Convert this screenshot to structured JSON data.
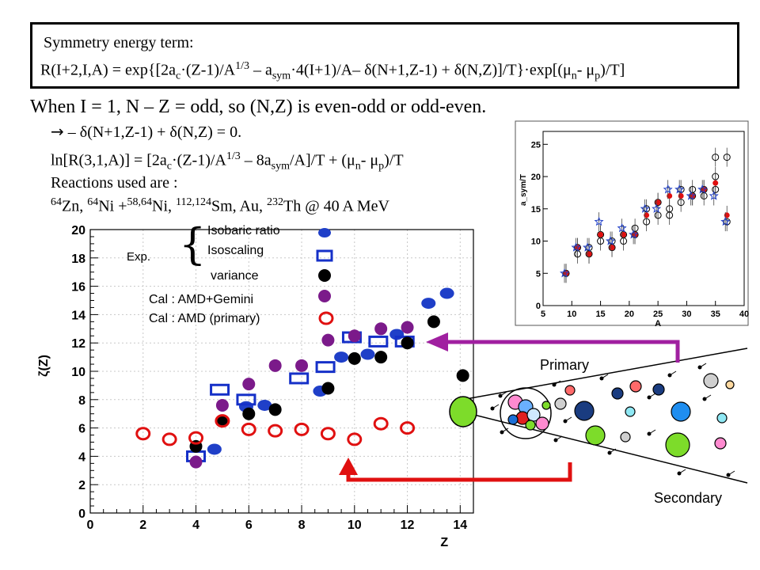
{
  "box": {
    "line1": "Symmetry energy term:",
    "line2_html": "R(I+2,I,A) = exp{[2a<sub>c</sub>·(Z-1)/A<sup>1/3</sup> – a<sub>sym</sub>·4(I+1)/A– δ(N+1,Z-1) + δ(N,Z)]/T}·exp[(μ<sub>n</sub>- μ<sub>p</sub>)/T]"
  },
  "text": {
    "when": "When I = 1, N – Z = odd, so (N,Z) is even-odd or odd-even.",
    "arrow_line": " – δ(N+1,Z-1) + δ(N,Z) = 0.",
    "ln_html": "ln[R(3,1,A)] = [2a<sub>c</sub>·(Z-1)/A<sup>1/3</sup> – 8a<sub>sym</sub>/A]/T + (μ<sub>n</sub>- μ<sub>p</sub>)/T",
    "reactions_title": "Reactions used are :",
    "reactions_html": "<sup>64</sup>Zn, <sup>64</sup>Ni +<sup>58,64</sup>Ni, <sup>112,124</sup>Sm, Au, <sup>232</sup>Th @ 40 A MeV"
  },
  "legend": {
    "exp": "Exp.",
    "isobaric": "Isobaric ratio",
    "isoscaling": "Isoscaling",
    "variance": "variance",
    "cal_amd_gemini": "Cal : AMD+Gemini",
    "cal_amd_primary": "Cal : AMD (primary)"
  },
  "labels": {
    "primary": "Primary",
    "secondary": "Secondary"
  },
  "colors": {
    "isobaric": "#1f3fc8",
    "isoscaling": "#1530c8",
    "variance": "#000000",
    "gemini": "#7b1a8a",
    "amd": "#e01010",
    "arrow_primary": "#a020a0",
    "arrow_secondary": "#e01010"
  },
  "chart_data": [
    {
      "type": "scatter",
      "xlabel": "Z",
      "ylabel": "ζ(Z)",
      "xlim": [
        0,
        14.5
      ],
      "ylim": [
        0,
        20
      ],
      "x_ticks": [
        "0",
        "2",
        "4",
        "6",
        "8",
        "10",
        "12",
        "14"
      ],
      "y_ticks": [
        "0",
        "2",
        "4",
        "6",
        "8",
        "10",
        "12",
        "14",
        "16",
        "18",
        "20"
      ],
      "grid": true,
      "series": [
        {
          "name": "Isobaric ratio",
          "marker": "filled-circle",
          "color": "#1f3fc8",
          "x": [
            4.7,
            5.9,
            6.6,
            8.7,
            9.5,
            10.5,
            11.6,
            12.8,
            13.5
          ],
          "y": [
            4.5,
            7.5,
            7.6,
            8.6,
            11.0,
            11.2,
            12.6,
            14.8,
            15.5
          ]
        },
        {
          "name": "Isoscaling",
          "marker": "open-square",
          "color": "#1530c8",
          "x": [
            4.0,
            4.9,
            5.9,
            7.9,
            8.9,
            9.9,
            10.9,
            11.9
          ],
          "y": [
            4.0,
            8.7,
            8.0,
            9.5,
            10.3,
            12.4,
            12.1,
            12.1
          ]
        },
        {
          "name": "variance",
          "marker": "filled-circle",
          "color": "#000000",
          "x": [
            4.0,
            5.0,
            6.0,
            7.0,
            9.0,
            10.0,
            11.0,
            12.0,
            13.0,
            14.1
          ],
          "y": [
            4.7,
            6.5,
            7.0,
            7.3,
            8.8,
            10.9,
            11.0,
            12.0,
            13.5,
            9.7
          ]
        },
        {
          "name": "Cal : AMD+Gemini",
          "marker": "filled-circle",
          "color": "#7b1a8a",
          "x": [
            4.0,
            5.0,
            6.0,
            7.0,
            8.0,
            9.0,
            10.0,
            11.0,
            12.0
          ],
          "y": [
            3.6,
            7.6,
            9.1,
            10.4,
            10.4,
            12.2,
            12.5,
            13.0,
            13.1
          ]
        },
        {
          "name": "Cal : AMD (primary)",
          "marker": "open-circle",
          "color": "#e01010",
          "x": [
            2.0,
            3.0,
            4.0,
            5.0,
            6.0,
            7.0,
            8.0,
            9.0,
            10.0,
            11.0,
            12.0
          ],
          "y": [
            5.6,
            5.2,
            5.3,
            6.5,
            5.9,
            5.8,
            5.9,
            5.6,
            5.2,
            6.3,
            6.0
          ]
        }
      ]
    },
    {
      "type": "scatter",
      "xlabel": "A",
      "ylabel": "a_sym/T",
      "xlim": [
        5,
        40
      ],
      "ylim": [
        0,
        27
      ],
      "x_ticks": [
        "5",
        "10",
        "15",
        "20",
        "25",
        "30",
        "35",
        "40"
      ],
      "y_ticks": [
        "0",
        "5",
        "10",
        "15",
        "20",
        "25"
      ],
      "series": [
        {
          "name": "open",
          "marker": "open-circle",
          "color": "#000000",
          "x": [
            9,
            11,
            11,
            13,
            13,
            15,
            15,
            17,
            17,
            19,
            19,
            21,
            21,
            23,
            23,
            25,
            25,
            27,
            27,
            29,
            29,
            31,
            31,
            33,
            33,
            35,
            35,
            35,
            37,
            37
          ],
          "y": [
            5,
            8,
            9,
            9,
            8,
            11,
            10,
            9,
            10,
            11,
            10,
            11,
            12,
            13,
            15,
            14,
            16,
            15,
            14,
            18,
            16,
            17,
            18,
            17,
            18,
            18,
            20,
            23,
            23,
            13
          ]
        },
        {
          "name": "red",
          "marker": "filled-circle",
          "color": "#e01010",
          "x": [
            9,
            11,
            13,
            15,
            17,
            19,
            21,
            23,
            25,
            27,
            29,
            31,
            33,
            35,
            37
          ],
          "y": [
            5,
            9,
            8,
            11,
            9,
            11,
            11,
            14,
            16,
            17,
            17,
            17,
            18,
            19,
            14
          ]
        },
        {
          "name": "blue",
          "marker": "open-star",
          "color": "#1f3fc8",
          "x": [
            9,
            11,
            13,
            15,
            17,
            19,
            21,
            23,
            25,
            27,
            29,
            31,
            33,
            35,
            37
          ],
          "y": [
            5,
            9,
            9,
            13,
            10,
            12,
            11,
            15,
            15,
            18,
            18,
            17,
            18,
            17,
            13
          ]
        }
      ]
    }
  ]
}
